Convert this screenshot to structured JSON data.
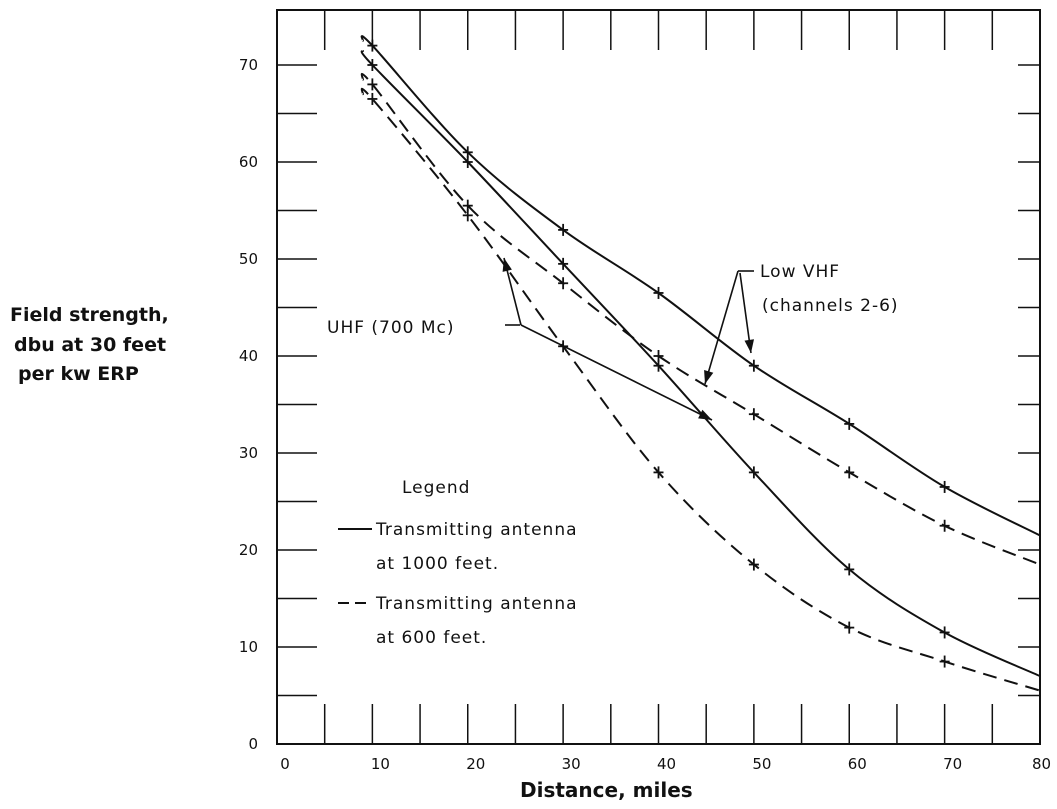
{
  "chart_data": {
    "type": "line",
    "title": "",
    "xlabel": "Distance, miles",
    "ylabel": [
      "Field strength,",
      "dbu at 30 feet",
      "per kw ERP"
    ],
    "xlim": [
      0,
      80
    ],
    "ylim": [
      0,
      75
    ],
    "x_ticks": [
      0,
      10,
      20,
      30,
      40,
      50,
      60,
      70,
      80
    ],
    "y_ticks": [
      0,
      10,
      20,
      30,
      40,
      50,
      60,
      70
    ],
    "grid": false,
    "legend": {
      "title": "Legend",
      "entries": [
        {
          "style": "solid",
          "line1": "Transmitting antenna",
          "line2": "at 1000 feet."
        },
        {
          "style": "dashed",
          "line1": "Transmitting antenna",
          "line2": "at 600 feet."
        }
      ],
      "placement": "lower-left"
    },
    "annotations": {
      "low_vhf": {
        "line1": "Low VHF",
        "line2": "(channels 2-6)"
      },
      "uhf": {
        "text": "UHF (700 Mc)"
      }
    },
    "series": [
      {
        "band": "Low VHF",
        "style": "solid",
        "x": [
          9,
          10,
          20,
          30,
          40,
          50,
          60,
          70,
          80
        ],
        "y": [
          72.5,
          72,
          61,
          53,
          46.5,
          39,
          33,
          26.5,
          21.5
        ]
      },
      {
        "band": "Low VHF",
        "style": "dashed",
        "x": [
          9,
          10,
          20,
          30,
          40,
          50,
          60,
          70,
          80
        ],
        "y": [
          68.5,
          68,
          55.5,
          47.5,
          40,
          34,
          28,
          22.5,
          18.5
        ]
      },
      {
        "band": "UHF",
        "style": "solid",
        "x": [
          9,
          10,
          20,
          30,
          40,
          50,
          60,
          70,
          80
        ],
        "y": [
          71.5,
          70,
          60,
          49.5,
          39,
          28,
          18,
          11.5,
          7
        ]
      },
      {
        "band": "UHF",
        "style": "dashed",
        "x": [
          9,
          10,
          20,
          30,
          40,
          50,
          60,
          70,
          80
        ],
        "y": [
          67,
          66.5,
          54.5,
          41,
          28,
          18.5,
          12,
          8.5,
          5.5
        ]
      }
    ]
  }
}
